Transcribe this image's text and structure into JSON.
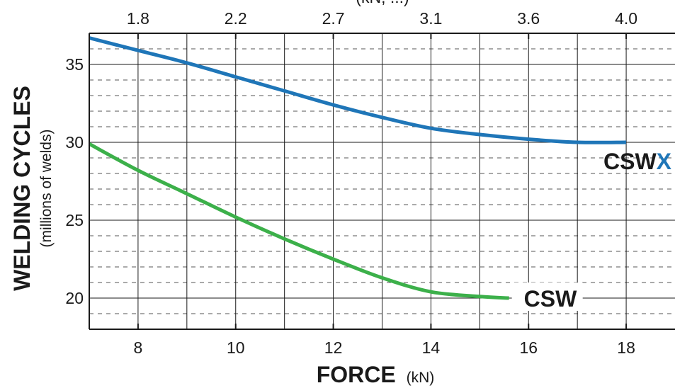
{
  "chart_data": {
    "type": "line",
    "xlabel": "FORCE",
    "xlabel_unit": "(kN)",
    "ylabel": "WELDING CYCLES",
    "ylabel_sub": "(millions of welds)",
    "top_axis_title": "(kN, ...)",
    "xlim": [
      7,
      19
    ],
    "ylim": [
      18,
      37
    ],
    "x_ticks": [
      8,
      10,
      12,
      14,
      16,
      18
    ],
    "y_ticks": [
      20,
      25,
      30,
      35
    ],
    "top_ticks": [
      {
        "x": 8,
        "label": "1.8"
      },
      {
        "x": 10,
        "label": "2.2"
      },
      {
        "x": 12,
        "label": "2.7"
      },
      {
        "x": 14,
        "label": "3.1"
      },
      {
        "x": 16,
        "label": "3.6"
      },
      {
        "x": 18,
        "label": "4.0"
      }
    ],
    "grid": true,
    "series": [
      {
        "name": "CSWX",
        "label_main": "CSW",
        "label_accent": "X",
        "color": "#1f76b8",
        "accent_color": "#1f76b8",
        "x": [
          7,
          8,
          9,
          10,
          11,
          12,
          13,
          14,
          15,
          16,
          17,
          18
        ],
        "y": [
          36.7,
          35.9,
          35.1,
          34.2,
          33.3,
          32.4,
          31.6,
          30.9,
          30.5,
          30.2,
          30.0,
          30.0
        ]
      },
      {
        "name": "CSW",
        "label_main": "CSW",
        "label_accent": "",
        "color": "#3cb04a",
        "accent_color": "#3cb04a",
        "x": [
          7,
          8,
          9,
          10,
          11,
          12,
          13,
          14,
          15,
          15.6
        ],
        "y": [
          29.9,
          28.2,
          26.7,
          25.2,
          23.8,
          22.5,
          21.3,
          20.4,
          20.1,
          20.0
        ]
      }
    ]
  }
}
